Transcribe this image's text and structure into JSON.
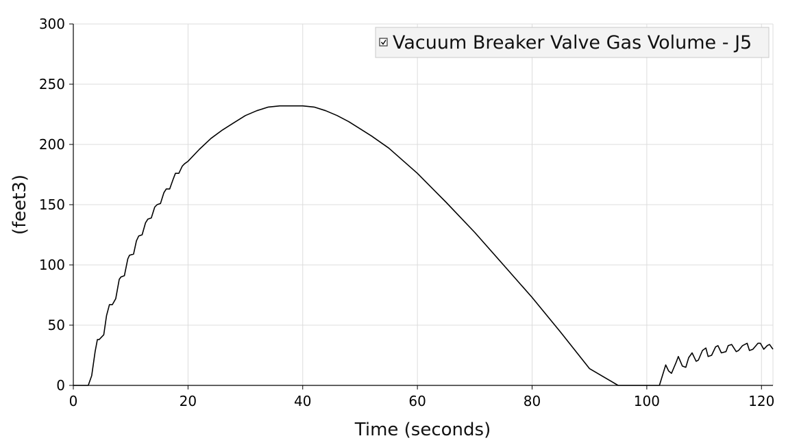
{
  "chart_data": {
    "type": "line",
    "title": "",
    "xlabel": "Time (seconds)",
    "ylabel": "(feet3)",
    "xlim": [
      0,
      122
    ],
    "ylim": [
      0,
      300
    ],
    "xticks": [
      0,
      20,
      40,
      60,
      80,
      100,
      120
    ],
    "yticks": [
      0,
      50,
      100,
      150,
      200,
      250,
      300
    ],
    "grid": true,
    "legend": {
      "placement": "top-right",
      "checkbox": true
    },
    "series": [
      {
        "name": "Vacuum Breaker Valve Gas Volume - J5",
        "color": "#000000",
        "x": [
          0,
          2.6,
          3.2,
          3.8,
          4.2,
          4.5,
          5.3,
          5.8,
          6.3,
          6.8,
          7.4,
          8.0,
          8.3,
          8.9,
          9.5,
          9.8,
          10.5,
          11.0,
          11.4,
          12.0,
          12.6,
          13.0,
          13.6,
          14.2,
          14.6,
          15.2,
          15.8,
          16.2,
          16.8,
          17.4,
          17.8,
          18.4,
          19.0,
          19.4,
          20.0,
          22.0,
          24.0,
          26.0,
          28.0,
          30.0,
          32.0,
          34.0,
          36.0,
          38.0,
          40.0,
          42.0,
          44.0,
          46.0,
          48.0,
          50.0,
          52.0,
          55.0,
          60.0,
          65.0,
          70.0,
          75.0,
          80.0,
          85.0,
          90.0,
          95.0,
          97.8,
          100.0,
          102.2,
          103.3,
          103.8,
          104.3,
          105.1,
          105.5,
          106.2,
          106.8,
          107.3,
          107.9,
          108.6,
          109.0,
          109.7,
          110.3,
          110.7,
          111.3,
          112.0,
          112.4,
          113.0,
          113.8,
          114.2,
          114.8,
          115.6,
          116.0,
          116.7,
          117.5,
          117.9,
          118.5,
          119.4,
          119.8,
          120.4,
          121.0,
          121.4,
          122.0
        ],
        "values": [
          0,
          0,
          8,
          28,
          38,
          38,
          42,
          58,
          67,
          67,
          72,
          88,
          90,
          91,
          105,
          108,
          109,
          120,
          124,
          125,
          135,
          138,
          139,
          148,
          150,
          151,
          160,
          163,
          163,
          171,
          176,
          176,
          182,
          184,
          186,
          196,
          205,
          212,
          218,
          224,
          228,
          231,
          232,
          232,
          232,
          231,
          228,
          224,
          219,
          213,
          207,
          197,
          176,
          152,
          127,
          100,
          73,
          44,
          14,
          0,
          0,
          0,
          0,
          17,
          12,
          10,
          19,
          24,
          16,
          15,
          23,
          27,
          20,
          21,
          29,
          31,
          24,
          25,
          32,
          33,
          27,
          28,
          33,
          34,
          28,
          29,
          33,
          35,
          29,
          30,
          35,
          35,
          30,
          33,
          34,
          30
        ]
      }
    ]
  }
}
